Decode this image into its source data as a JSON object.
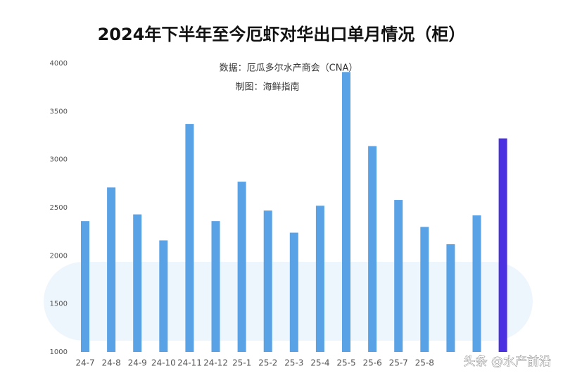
{
  "chart_data": {
    "type": "bar",
    "title": "2024年下半年至今厄虾对华出口单月情况（柜）",
    "subtitle": "数据：厄瓜多尔水产商会（CNA）",
    "credit": "制图：海鲜指南",
    "watermark": "头条 @水产前沿",
    "categories": [
      "24-7",
      "24-8",
      "24-9",
      "24-10",
      "24-11",
      "24-12",
      "25-1",
      "25-2",
      "25-3",
      "25-4",
      "25-5",
      "25-6",
      "25-7",
      "25-8",
      null,
      null,
      null
    ],
    "values": [
      2360,
      2710,
      2430,
      2160,
      3370,
      2360,
      2770,
      2470,
      2240,
      2520,
      3910,
      3140,
      2580,
      2300,
      2120,
      2420,
      3220
    ],
    "colors": [
      "#5aa2e6",
      "#5aa2e6",
      "#5aa2e6",
      "#5aa2e6",
      "#5aa2e6",
      "#5aa2e6",
      "#5aa2e6",
      "#5aa2e6",
      "#5aa2e6",
      "#5aa2e6",
      "#5aa2e6",
      "#5aa2e6",
      "#5aa2e6",
      "#5aa2e6",
      "#5aa2e6",
      "#5aa2e6",
      "#4a30e0"
    ],
    "ylim": [
      1000,
      4000
    ],
    "yticks": [
      1000,
      1500,
      2000,
      2500,
      3000,
      3500,
      4000
    ],
    "grid": false
  }
}
